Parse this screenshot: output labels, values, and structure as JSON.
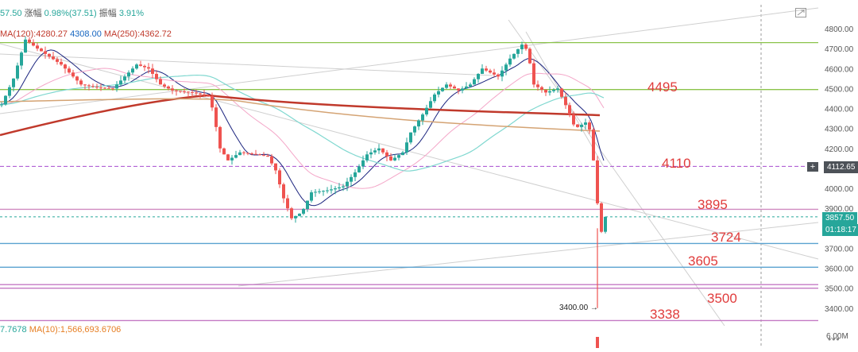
{
  "header": {
    "price_fragment": "57.50",
    "change_label": "涨幅",
    "change_value": "0.98%(37.51)",
    "amplitude_label": "振幅",
    "amplitude_value": "3.91%"
  },
  "ma_legend": {
    "ma120": "MA(120):4280.27",
    "ma250": "MA(250):4362.72",
    "ma20_fragment": "4308.00"
  },
  "volume_legend": {
    "vol_fragment": "7.7678",
    "ma10": "MA(10):1,566,693.6706"
  },
  "right_badges": {
    "cursor_price": "4112.65",
    "last_price": "3857.50",
    "countdown": "01:18:17",
    "cursor_symbol": "+"
  },
  "low_marker": "3400.00 →",
  "more_icon": "•••",
  "chart_data": {
    "type": "candlestick",
    "yaxis_ticks": [
      "4800.00",
      "4700.00",
      "4600.00",
      "4500.00",
      "4400.00",
      "4300.00",
      "4200.00",
      "4100.00",
      "4000.00",
      "3900.00",
      "3800.00",
      "3700.00",
      "3600.00",
      "3500.00",
      "3400.00"
    ],
    "volume_tick": "6.00M",
    "ylim": [
      3300,
      4850
    ],
    "horizontal_levels": [
      {
        "label": "4495",
        "value": 4495,
        "color": "#8bc34a"
      },
      {
        "label": "4110",
        "value": 4110,
        "color": "#a64dcf"
      },
      {
        "label": "3895",
        "value": 3895,
        "color": "#d08ac0"
      },
      {
        "label": "3724",
        "value": 3724,
        "color": "#5aa2d0"
      },
      {
        "label": "3605",
        "value": 3605,
        "color": "#5aa2d0"
      },
      {
        "label": "3500",
        "value": 3500,
        "color": "#c479c4"
      },
      {
        "label": "3338",
        "value": 3338,
        "color": "#c479c4"
      }
    ],
    "extra_levels": [
      {
        "value": 4730,
        "color": "#8bc34a"
      },
      {
        "value": 3518,
        "color": "#c479c4"
      }
    ],
    "current_price": 3857.5,
    "cursor_price": 4112.65,
    "lowest_marked": 3400,
    "price_path": [
      [
        0,
        4420
      ],
      [
        15,
        4550
      ],
      [
        30,
        4745
      ],
      [
        45,
        4700
      ],
      [
        60,
        4660
      ],
      [
        75,
        4620
      ],
      [
        90,
        4560
      ],
      [
        100,
        4520
      ],
      [
        120,
        4505
      ],
      [
        140,
        4500
      ],
      [
        155,
        4560
      ],
      [
        170,
        4620
      ],
      [
        185,
        4600
      ],
      [
        200,
        4520
      ],
      [
        215,
        4490
      ],
      [
        240,
        4480
      ],
      [
        262,
        4460
      ],
      [
        268,
        4350
      ],
      [
        275,
        4200
      ],
      [
        285,
        4140
      ],
      [
        300,
        4180
      ],
      [
        320,
        4170
      ],
      [
        335,
        4160
      ],
      [
        345,
        4090
      ],
      [
        355,
        3950
      ],
      [
        365,
        3850
      ],
      [
        378,
        3880
      ],
      [
        390,
        3980
      ],
      [
        410,
        3990
      ],
      [
        430,
        4010
      ],
      [
        445,
        4080
      ],
      [
        460,
        4170
      ],
      [
        475,
        4200
      ],
      [
        490,
        4140
      ],
      [
        505,
        4180
      ],
      [
        515,
        4280
      ],
      [
        530,
        4370
      ],
      [
        545,
        4470
      ],
      [
        560,
        4520
      ],
      [
        575,
        4490
      ],
      [
        590,
        4520
      ],
      [
        605,
        4600
      ],
      [
        625,
        4560
      ],
      [
        640,
        4650
      ],
      [
        655,
        4720
      ],
      [
        662,
        4690
      ],
      [
        670,
        4520
      ],
      [
        685,
        4480
      ],
      [
        700,
        4500
      ],
      [
        712,
        4400
      ],
      [
        722,
        4300
      ],
      [
        735,
        4330
      ],
      [
        742,
        4280
      ],
      [
        748,
        4000
      ],
      [
        752,
        3850
      ],
      [
        756,
        3760
      ],
      [
        760,
        3857.5
      ]
    ],
    "candle_step": 5,
    "candle_x_range": [
      0,
      760
    ]
  }
}
